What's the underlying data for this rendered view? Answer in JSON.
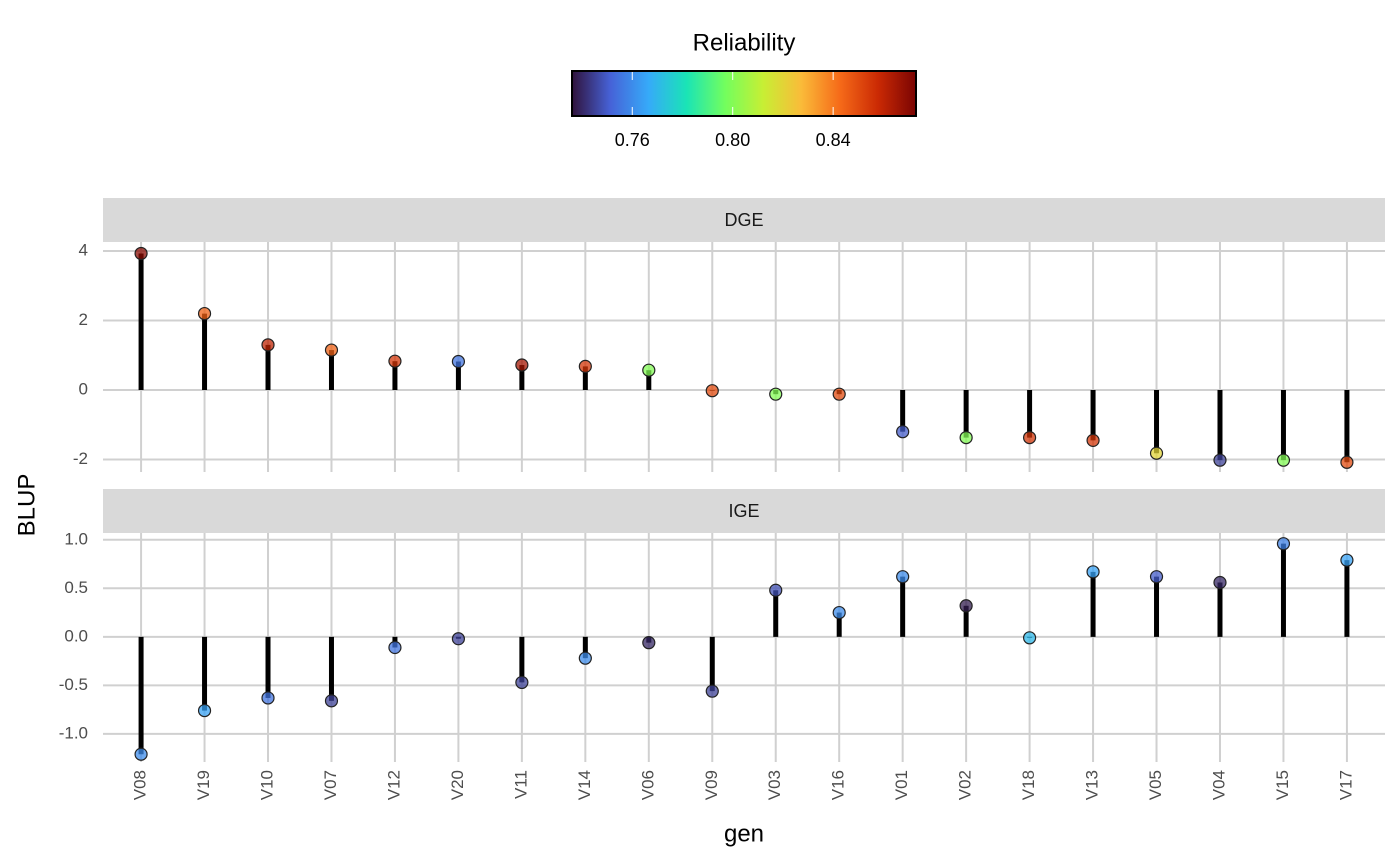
{
  "chart_data": {
    "type": "lollipop",
    "x_label": "gen",
    "y_label": "BLUP",
    "categories": [
      "V08",
      "V19",
      "V10",
      "V07",
      "V12",
      "V20",
      "V11",
      "V14",
      "V06",
      "V09",
      "V03",
      "V16",
      "V01",
      "V02",
      "V18",
      "V13",
      "V05",
      "V04",
      "V15",
      "V17"
    ],
    "grid": true,
    "stem_color": "#000000",
    "colorbar": {
      "title": "Reliability",
      "lim": [
        0.736,
        0.873
      ],
      "ticks": [
        0.76,
        {
          "value": 0.8,
          "label": "0.80"
        },
        0.84
      ],
      "colormap": [
        "#30123b",
        "#4662d7",
        "#36aaf9",
        "#1ae4b6",
        "#72fe5e",
        "#c7ef34",
        "#fabb39",
        "#f66b19",
        "#cb2a04",
        "#7a0403"
      ]
    },
    "facets": [
      {
        "name": "DGE",
        "values": [
          3.93,
          2.2,
          1.3,
          1.15,
          0.83,
          0.82,
          0.72,
          0.68,
          0.57,
          -0.02,
          -0.12,
          -0.12,
          -1.2,
          -1.37,
          -1.37,
          -1.45,
          -1.82,
          -2.02,
          -2.02,
          -2.08
        ],
        "reliability": [
          0.87,
          0.845,
          0.86,
          0.845,
          0.855,
          0.755,
          0.865,
          0.855,
          0.8,
          0.85,
          0.8,
          0.85,
          0.75,
          0.8,
          0.855,
          0.855,
          0.82,
          0.745,
          0.8,
          0.85
        ],
        "ylim": [
          -2.36,
          4.26
        ],
        "yticks": [
          -2,
          0,
          2,
          4
        ]
      },
      {
        "name": "IGE",
        "values": [
          -1.21,
          -0.76,
          -0.63,
          -0.66,
          -0.11,
          -0.02,
          -0.47,
          -0.22,
          -0.06,
          -0.56,
          0.48,
          0.25,
          0.62,
          0.32,
          -0.01,
          0.67,
          0.62,
          0.56,
          0.96,
          0.79
        ],
        "reliability": [
          0.76,
          0.765,
          0.755,
          0.745,
          0.755,
          0.745,
          0.745,
          0.76,
          0.74,
          0.745,
          0.748,
          0.76,
          0.76,
          0.738,
          0.77,
          0.765,
          0.75,
          0.74,
          0.758,
          0.765
        ],
        "ylim": [
          -1.29,
          1.07
        ],
        "yticks": [
          {
            "value": -1,
            "label": "-1.0"
          },
          {
            "value": -0.5,
            "label": "-0.5"
          },
          {
            "value": 0,
            "label": "0.0"
          },
          {
            "value": 0.5,
            "label": "0.5"
          },
          {
            "value": 1,
            "label": "1.0"
          }
        ]
      }
    ]
  }
}
